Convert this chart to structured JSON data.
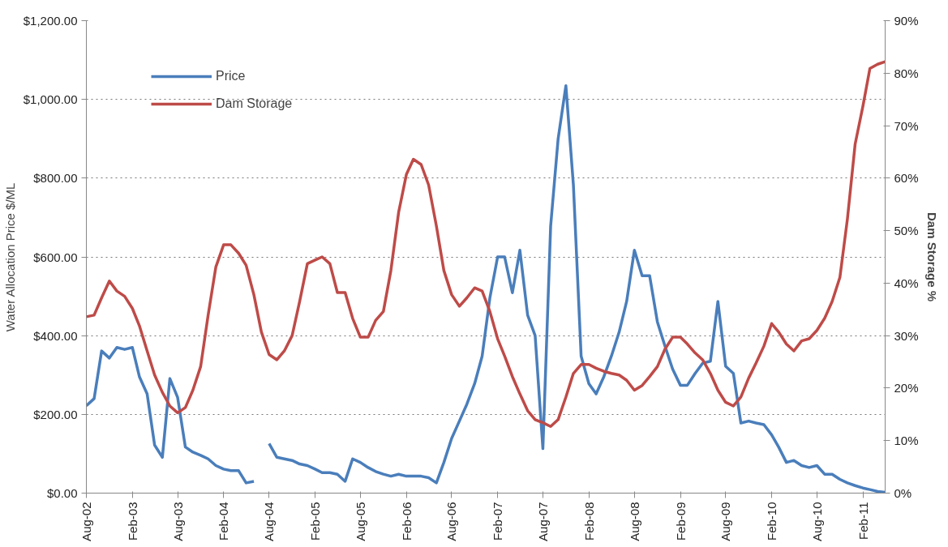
{
  "chart_data": {
    "type": "line",
    "ylabel": "Water Allocation Price $/ML",
    "y2label": "Dam Storage %",
    "x": [
      "2002-08",
      "2002-09",
      "2002-10",
      "2002-11",
      "2002-12",
      "2003-01",
      "2003-02",
      "2003-03",
      "2003-04",
      "2003-05",
      "2003-06",
      "2003-07",
      "2003-08",
      "2003-09",
      "2003-10",
      "2003-11",
      "2003-12",
      "2004-01",
      "2004-02",
      "2004-03",
      "2004-04",
      "2004-05",
      "2004-06",
      "2004-07",
      "2004-08",
      "2004-09",
      "2004-10",
      "2004-11",
      "2004-12",
      "2005-01",
      "2005-02",
      "2005-03",
      "2005-04",
      "2005-05",
      "2005-06",
      "2005-07",
      "2005-08",
      "2005-09",
      "2005-10",
      "2005-11",
      "2005-12",
      "2006-01",
      "2006-02",
      "2006-03",
      "2006-04",
      "2006-05",
      "2006-06",
      "2006-07",
      "2006-08",
      "2006-09",
      "2006-10",
      "2006-11",
      "2006-12",
      "2007-01",
      "2007-02",
      "2007-03",
      "2007-04",
      "2007-05",
      "2007-06",
      "2007-07",
      "2007-08",
      "2007-09",
      "2007-10",
      "2007-11",
      "2007-12",
      "2008-01",
      "2008-02",
      "2008-03",
      "2008-04",
      "2008-05",
      "2008-06",
      "2008-07",
      "2008-08",
      "2008-09",
      "2008-10",
      "2008-11",
      "2008-12",
      "2009-01",
      "2009-02",
      "2009-03",
      "2009-04",
      "2009-05",
      "2009-06",
      "2009-07",
      "2009-08",
      "2009-09",
      "2009-10",
      "2009-11",
      "2009-12",
      "2010-01",
      "2010-02",
      "2010-03",
      "2010-04",
      "2010-05",
      "2010-06",
      "2010-07",
      "2010-08",
      "2010-09",
      "2010-10",
      "2010-11",
      "2010-12",
      "2011-01",
      "2011-02",
      "2011-03",
      "2011-04",
      "2011-05"
    ],
    "series": [
      {
        "name": "Price",
        "color": "#4a7ebb",
        "values": [
          222,
          240,
          361,
          343,
          370,
          365,
          370,
          296,
          252,
          122,
          91,
          291,
          243,
          117,
          104,
          96,
          87,
          70,
          61,
          57,
          57,
          26,
          30,
          null,
          126,
          91,
          87,
          83,
          74,
          70,
          61,
          52,
          52,
          48,
          30,
          87,
          78,
          65,
          55,
          48,
          43,
          48,
          43,
          43,
          43,
          39,
          26,
          78,
          139,
          183,
          226,
          278,
          348,
          496,
          600,
          600,
          509,
          617,
          452,
          400,
          113,
          678,
          900,
          1035,
          783,
          348,
          278,
          252,
          296,
          348,
          409,
          487,
          617,
          552,
          552,
          435,
          374,
          315,
          274,
          274,
          304,
          330,
          335,
          487,
          322,
          304,
          178,
          183,
          178,
          174,
          148,
          117,
          78,
          83,
          70,
          65,
          70,
          48,
          48,
          35,
          26,
          19,
          13,
          9,
          4,
          2
        ]
      },
      {
        "name": "Dam Storage",
        "color": "#be4b48",
        "axis": "y2",
        "values": [
          33.6,
          33.9,
          37.2,
          40.4,
          38.5,
          37.5,
          35.2,
          31.9,
          27.1,
          22.5,
          19.2,
          16.6,
          15.3,
          16.3,
          19.6,
          24.1,
          33.9,
          43.1,
          47.3,
          47.3,
          45.7,
          43.4,
          37.8,
          30.7,
          26.4,
          25.4,
          27.1,
          30.0,
          36.5,
          43.7,
          44.4,
          45.0,
          43.7,
          38.2,
          38.2,
          33.3,
          29.7,
          29.7,
          32.9,
          34.6,
          42.4,
          53.5,
          60.7,
          63.6,
          62.6,
          58.7,
          50.9,
          42.4,
          37.8,
          35.6,
          37.2,
          39.1,
          38.5,
          34.6,
          29.4,
          26.1,
          22.2,
          18.9,
          15.7,
          14.0,
          13.4,
          12.7,
          14.0,
          18.3,
          22.8,
          24.5,
          24.5,
          23.8,
          23.2,
          22.8,
          22.5,
          21.5,
          19.6,
          20.5,
          22.2,
          24.1,
          27.4,
          29.7,
          29.7,
          28.4,
          26.7,
          25.4,
          22.8,
          19.6,
          17.3,
          16.6,
          18.3,
          21.9,
          24.8,
          28.0,
          32.3,
          30.7,
          28.4,
          27.1,
          29.0,
          29.4,
          31.0,
          33.3,
          36.5,
          41.1,
          52.2,
          66.5,
          73.7,
          80.9,
          81.7,
          82.2
        ]
      }
    ],
    "xlim": [
      "2002-08",
      "2011-05"
    ],
    "xticks": [
      {
        "value": "2002-08",
        "label": "Aug-02"
      },
      {
        "value": "2003-02",
        "label": "Feb-03"
      },
      {
        "value": "2003-08",
        "label": "Aug-03"
      },
      {
        "value": "2004-02",
        "label": "Feb-04"
      },
      {
        "value": "2004-08",
        "label": "Aug-04"
      },
      {
        "value": "2005-02",
        "label": "Feb-05"
      },
      {
        "value": "2005-08",
        "label": "Aug-05"
      },
      {
        "value": "2006-02",
        "label": "Feb-06"
      },
      {
        "value": "2006-08",
        "label": "Aug-06"
      },
      {
        "value": "2007-02",
        "label": "Feb-07"
      },
      {
        "value": "2007-08",
        "label": "Aug-07"
      },
      {
        "value": "2008-02",
        "label": "Feb-08"
      },
      {
        "value": "2008-08",
        "label": "Aug-08"
      },
      {
        "value": "2009-02",
        "label": "Feb-09"
      },
      {
        "value": "2009-08",
        "label": "Aug-09"
      },
      {
        "value": "2010-02",
        "label": "Feb-10"
      },
      {
        "value": "2010-08",
        "label": "Aug-10"
      },
      {
        "value": "2011-02",
        "label": "Feb-11"
      }
    ],
    "ylim": [
      0,
      1200
    ],
    "yticks": [
      {
        "value": 0,
        "label": "$0.00"
      },
      {
        "value": 200,
        "label": "$200.00"
      },
      {
        "value": 400,
        "label": "$400.00"
      },
      {
        "value": 600,
        "label": "$600.00"
      },
      {
        "value": 800,
        "label": "$800.00"
      },
      {
        "value": 1000,
        "label": "$1,000.00"
      },
      {
        "value": 1200,
        "label": "$1,200.00"
      }
    ],
    "y2lim": [
      0,
      90
    ],
    "y2ticks": [
      {
        "value": 0,
        "label": "0%"
      },
      {
        "value": 10,
        "label": "10%"
      },
      {
        "value": 20,
        "label": "20%"
      },
      {
        "value": 30,
        "label": "30%"
      },
      {
        "value": 40,
        "label": "40%"
      },
      {
        "value": 50,
        "label": "50%"
      },
      {
        "value": 60,
        "label": "60%"
      },
      {
        "value": 70,
        "label": "70%"
      },
      {
        "value": 80,
        "label": "80%"
      },
      {
        "value": 90,
        "label": "90%"
      }
    ],
    "grid": "y",
    "legend": "top left",
    "line_style": "solid",
    "marker": "none"
  }
}
